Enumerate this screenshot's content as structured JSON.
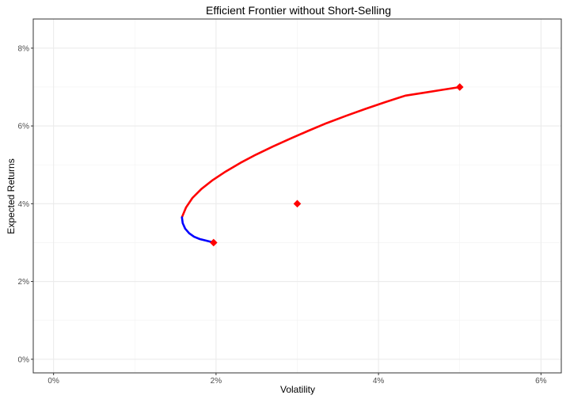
{
  "chart_data": {
    "type": "line",
    "title": "Efficient Frontier without Short-Selling",
    "xlabel": "Volatility",
    "ylabel": "Expected Returns",
    "xlim": [
      -0.0025,
      0.0625
    ],
    "ylim": [
      -0.0035,
      0.0875
    ],
    "x_ticks": [
      0,
      0.02,
      0.04,
      0.06
    ],
    "x_tick_labels": [
      "0%",
      "2%",
      "4%",
      "6%"
    ],
    "y_ticks": [
      0,
      0.02,
      0.04,
      0.06,
      0.08
    ],
    "y_tick_labels": [
      "0%",
      "2%",
      "4%",
      "6%",
      "8%"
    ],
    "grid": true,
    "min_variance_point": {
      "x": 0.0158,
      "y": 0.0365
    },
    "series": [
      {
        "role": "efficient",
        "color": "#ff0000",
        "x": [
          0.0158,
          0.0163,
          0.0171,
          0.0182,
          0.0196,
          0.0212,
          0.023,
          0.0249,
          0.027,
          0.0291,
          0.0313,
          0.0336,
          0.036,
          0.0384,
          0.0408,
          0.0433,
          0.0458,
          0.0479,
          0.05
        ],
        "y": [
          0.0365,
          0.039,
          0.0415,
          0.0438,
          0.0461,
          0.0483,
          0.0505,
          0.0526,
          0.0547,
          0.0567,
          0.0587,
          0.0607,
          0.0626,
          0.0644,
          0.0661,
          0.0678,
          0.0686,
          0.0693,
          0.07
        ]
      },
      {
        "role": "inefficient",
        "color": "#0000ff",
        "x": [
          0.0158,
          0.0159,
          0.0162,
          0.0167,
          0.0173,
          0.018,
          0.0188,
          0.0197
        ],
        "y": [
          0.0365,
          0.035,
          0.0336,
          0.0324,
          0.0315,
          0.0309,
          0.0305,
          0.03
        ]
      }
    ],
    "assets": {
      "color": "#ff0000",
      "shape": "diamond",
      "points": [
        {
          "x": 0.0197,
          "y": 0.03
        },
        {
          "x": 0.03,
          "y": 0.04
        },
        {
          "x": 0.05,
          "y": 0.07
        }
      ]
    }
  }
}
